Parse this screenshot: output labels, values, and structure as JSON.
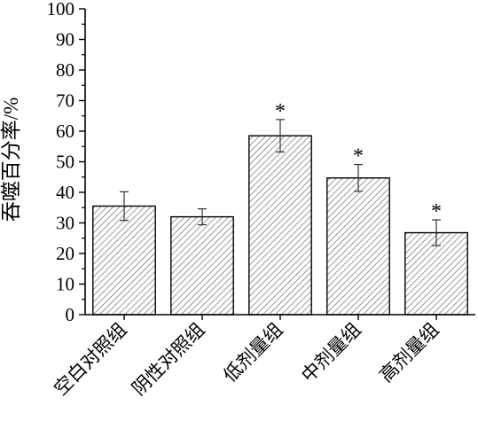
{
  "chart_data": {
    "type": "bar",
    "title": "",
    "xlabel": "",
    "ylabel": "吞噬百分率/%",
    "ylim": [
      0,
      100
    ],
    "yticks": [
      0,
      10,
      20,
      30,
      40,
      50,
      60,
      70,
      80,
      90,
      100
    ],
    "categories": [
      "空白对照组",
      "阴性对照组",
      "低剂量组",
      "中剂量组",
      "高剂量组"
    ],
    "values": [
      35.5,
      32,
      58.5,
      44.7,
      26.8
    ],
    "errors": [
      4.7,
      2.6,
      5.3,
      4.4,
      4.2
    ],
    "significance": [
      "",
      "",
      "*",
      "*",
      "*"
    ],
    "bar_fill": "diagonal-hatch",
    "grid": false
  }
}
